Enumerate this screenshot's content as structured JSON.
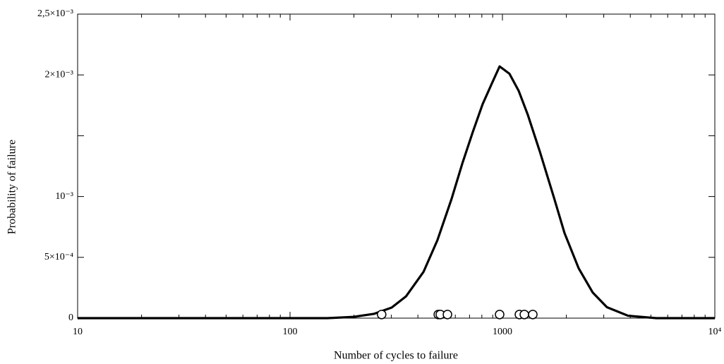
{
  "chart_data": {
    "type": "line",
    "xlabel": "Number of cycles to failure",
    "ylabel": "Probability of failure",
    "xscale": "log",
    "xlim": [
      10,
      10000
    ],
    "ylim": [
      0,
      0.0025
    ],
    "xticks": [
      10,
      100,
      1000,
      {
        "value": 10000,
        "label": "10⁴"
      }
    ],
    "yticks": [
      0,
      {
        "value": 0.0005,
        "label": "5×10⁻⁴"
      },
      {
        "value": 0.001,
        "label": "10⁻³"
      },
      {
        "value": 0.002,
        "label": "2×10⁻³"
      },
      {
        "value": 0.0025,
        "label": "2,5×10⁻³"
      }
    ],
    "yminor_ticks": [
      0.0015
    ],
    "curve": {
      "color": "#000000",
      "x": [
        10,
        100,
        150,
        198,
        248,
        301,
        352,
        425,
        494,
        576,
        647,
        725,
        807,
        892,
        970,
        1079,
        1192,
        1318,
        1500,
        1749,
        1960,
        2285,
        2663,
        3105,
        3901,
        5300,
        10000
      ],
      "values": [
        0,
        0,
        0,
        1e-05,
        3.5e-05,
        8.7e-05,
        0.00018,
        0.00038,
        0.00064,
        0.00098,
        0.00127,
        0.00153,
        0.00176,
        0.00193,
        0.00207,
        0.00201,
        0.00187,
        0.00167,
        0.00137,
        0.00099,
        0.0007,
        0.00041,
        0.00021,
        9e-05,
        2e-05,
        0,
        0
      ]
    },
    "points": {
      "color": "#000000",
      "x": [
        270,
        499,
        510,
        551,
        970,
        1202,
        1268,
        1390
      ],
      "values": [
        3e-05,
        3e-05,
        3e-05,
        3e-05,
        3e-05,
        3e-05,
        3e-05,
        3e-05
      ]
    }
  }
}
